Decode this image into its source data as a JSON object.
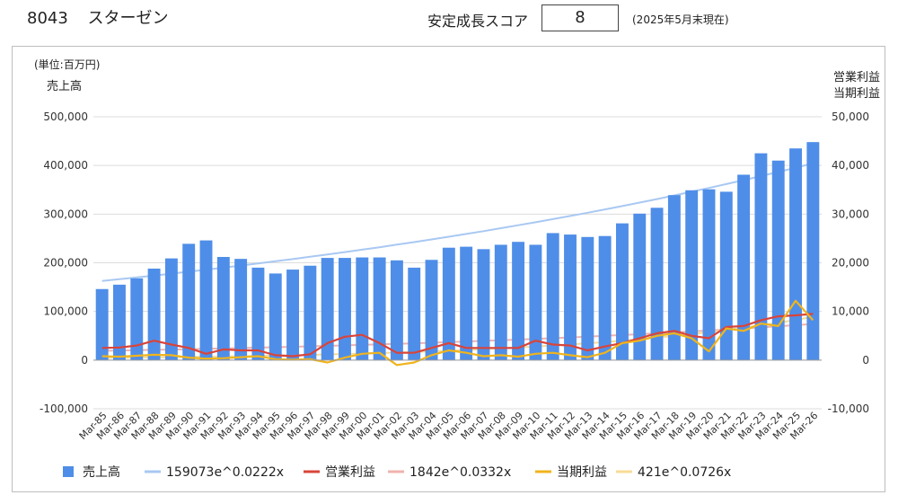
{
  "header": {
    "code": "8043",
    "company": "スターゼン",
    "score_label": "安定成長スコア",
    "score_value": "8",
    "note": "(2025年5月末現在)"
  },
  "chart_data": {
    "type": "bar",
    "unit_label": "(単位:百万円)",
    "left_axis_title": "売上高",
    "right_axis_title_1": "営業利益",
    "right_axis_title_2": "当期利益",
    "left_ticks": [
      "500,000",
      "400,000",
      "300,000",
      "200,000",
      "100,000",
      "0",
      "-100,000"
    ],
    "right_ticks": [
      "50,000",
      "40,000",
      "30,000",
      "20,000",
      "10,000",
      "0",
      "-10,000"
    ],
    "y_left_lim": [
      -100000,
      500000
    ],
    "y_right_lim": [
      -10000,
      50000
    ],
    "grid": true,
    "legend_position": "bottom",
    "categories": [
      "Mar-85",
      "Mar-86",
      "Mar-87",
      "Mar-88",
      "Mar-89",
      "Mar-90",
      "Mar-91",
      "Mar-92",
      "Mar-93",
      "Mar-94",
      "Mar-95",
      "Mar-96",
      "Mar-97",
      "Mar-98",
      "Mar-99",
      "Mar-00",
      "Mar-01",
      "Mar-02",
      "Mar-03",
      "Mar-04",
      "Mar-05",
      "Mar-06",
      "Mar-07",
      "Mar-08",
      "Mar-09",
      "Mar-10",
      "Mar-11",
      "Mar-12",
      "Mar-13",
      "Mar-14",
      "Mar-15",
      "Mar-16",
      "Mar-17",
      "Mar-18",
      "Mar-19",
      "Mar-20",
      "Mar-21",
      "Mar-22",
      "Mar-23",
      "Mar-24",
      "Mar-25",
      "Mar-26"
    ],
    "series": [
      {
        "name": "売上高",
        "axis": "left",
        "kind": "bar",
        "color": "#4f8ee8",
        "values": [
          146000,
          155000,
          168000,
          188000,
          209000,
          239000,
          246000,
          212000,
          208000,
          190000,
          178000,
          186000,
          194000,
          210000,
          210000,
          211000,
          211000,
          205000,
          190000,
          206000,
          231000,
          233000,
          228000,
          237000,
          243000,
          237000,
          261000,
          258000,
          253000,
          255000,
          281000,
          301000,
          313000,
          339000,
          349000,
          351000,
          346000,
          381000,
          425000,
          410000,
          435000,
          448000
        ]
      },
      {
        "name": "159073e^0.0222x",
        "axis": "left",
        "kind": "trend",
        "color": "#a9c8f2",
        "a": 159073,
        "b": 0.0222
      },
      {
        "name": "営業利益",
        "axis": "right",
        "kind": "line",
        "color": "#d9443a",
        "values": [
          2500,
          2600,
          3000,
          4000,
          3200,
          2500,
          1300,
          2200,
          2000,
          2000,
          1000,
          800,
          1200,
          3500,
          4800,
          5200,
          3500,
          1500,
          1500,
          2500,
          3500,
          2500,
          2500,
          2500,
          2500,
          4000,
          3200,
          3000,
          2000,
          2800,
          3500,
          4500,
          5500,
          6000,
          5000,
          4500,
          6800,
          7000,
          8200,
          9000,
          9200,
          9500
        ]
      },
      {
        "name": "1842e^0.0332x",
        "axis": "right",
        "kind": "trend",
        "color": "#f0b3ad",
        "a": 1842,
        "b": 0.0332
      },
      {
        "name": "当期利益",
        "axis": "right",
        "kind": "line",
        "color": "#f0b41c",
        "values": [
          800,
          700,
          900,
          1100,
          1000,
          500,
          300,
          400,
          600,
          800,
          200,
          100,
          200,
          -500,
          500,
          1300,
          1500,
          -1000,
          -500,
          1000,
          2000,
          1500,
          800,
          1000,
          700,
          1300,
          1500,
          1000,
          600,
          1500,
          3500,
          4000,
          5000,
          5500,
          4500,
          1800,
          6500,
          6000,
          7500,
          7000,
          12200,
          8200
        ]
      },
      {
        "name": "421e^0.0726x",
        "axis": "right",
        "kind": "trend",
        "color": "#f8dc96",
        "a": 421,
        "b": 0.0726
      }
    ]
  }
}
